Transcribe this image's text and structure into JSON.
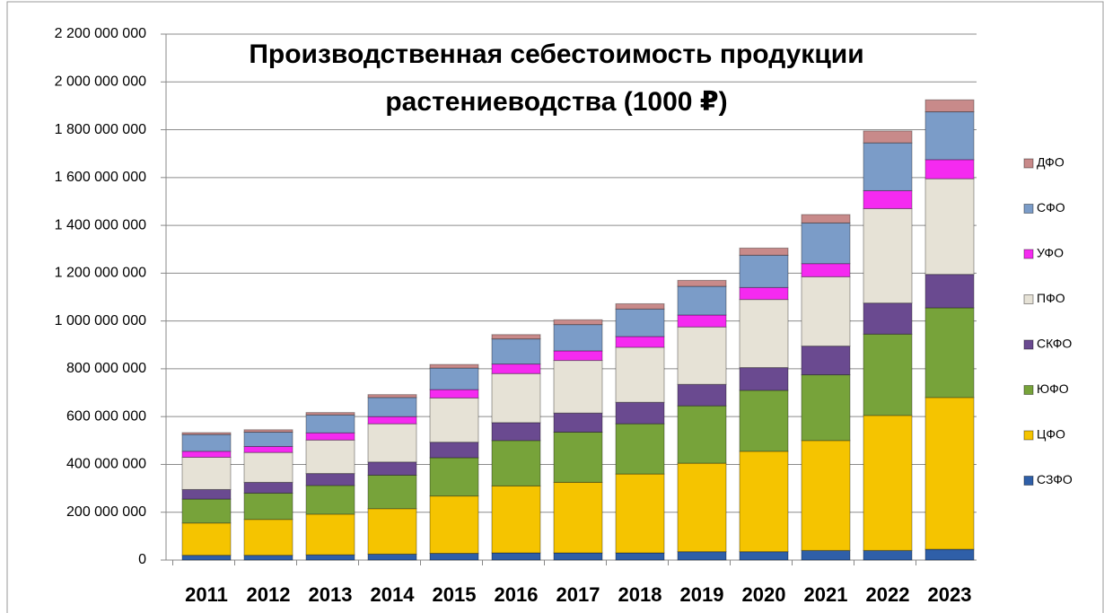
{
  "chart_data": {
    "type": "stacked_bar",
    "title": [
      "Производственная  себестоимость  продукции",
      "растениеводства  (1000 ₽)"
    ],
    "categories": [
      "2011",
      "2012",
      "2013",
      "2014",
      "2015",
      "2016",
      "2017",
      "2018",
      "2019",
      "2020",
      "2021",
      "2022",
      "2023"
    ],
    "series": [
      {
        "name": "СЗФО",
        "color": "#2f5fa8",
        "values": [
          20000000,
          20000000,
          22000000,
          25000000,
          28000000,
          30000000,
          30000000,
          30000000,
          35000000,
          35000000,
          40000000,
          40000000,
          45000000
        ]
      },
      {
        "name": "ЦФО",
        "color": "#f5c400",
        "values": [
          135000000,
          150000000,
          170000000,
          190000000,
          240000000,
          280000000,
          295000000,
          330000000,
          370000000,
          420000000,
          460000000,
          565000000,
          635000000
        ]
      },
      {
        "name": "ЮФО",
        "color": "#77a33a",
        "values": [
          100000000,
          110000000,
          120000000,
          140000000,
          160000000,
          190000000,
          210000000,
          210000000,
          240000000,
          255000000,
          275000000,
          340000000,
          375000000
        ]
      },
      {
        "name": "СКФО",
        "color": "#6a4a90",
        "values": [
          40000000,
          45000000,
          50000000,
          55000000,
          65000000,
          75000000,
          80000000,
          90000000,
          90000000,
          95000000,
          120000000,
          130000000,
          140000000
        ]
      },
      {
        "name": "ПФО",
        "color": "#e6e2d6",
        "values": [
          135000000,
          125000000,
          140000000,
          160000000,
          185000000,
          205000000,
          220000000,
          230000000,
          240000000,
          285000000,
          290000000,
          395000000,
          400000000
        ]
      },
      {
        "name": "УФО",
        "color": "#f52af0",
        "values": [
          25000000,
          25000000,
          30000000,
          30000000,
          35000000,
          40000000,
          40000000,
          45000000,
          50000000,
          50000000,
          55000000,
          75000000,
          80000000
        ]
      },
      {
        "name": "СФО",
        "color": "#7b9cc8",
        "values": [
          70000000,
          60000000,
          75000000,
          80000000,
          90000000,
          105000000,
          110000000,
          115000000,
          120000000,
          135000000,
          170000000,
          200000000,
          200000000
        ]
      },
      {
        "name": "ДФО",
        "color": "#c88a8a",
        "values": [
          8000000,
          10000000,
          10000000,
          12000000,
          15000000,
          18000000,
          20000000,
          22000000,
          25000000,
          30000000,
          35000000,
          50000000,
          50000000
        ]
      }
    ],
    "ylim": [
      0,
      2200000000
    ],
    "yticks": [
      0,
      {
        "value": 200000000,
        "label": "200 000 000"
      },
      {
        "value": 400000000,
        "label": "400 000 000"
      },
      {
        "value": 600000000,
        "label": "600 000 000"
      },
      {
        "value": 800000000,
        "label": "800 000 000"
      },
      {
        "value": 1000000000,
        "label": "1 000 000 000"
      },
      {
        "value": 1200000000,
        "label": "1 200 000 000"
      },
      {
        "value": 1400000000,
        "label": "1 400 000 000"
      },
      {
        "value": 1600000000,
        "label": "1 600 000 000"
      },
      {
        "value": 1800000000,
        "label": "1 800 000 000"
      },
      {
        "value": 2000000000,
        "label": "2 000 000 000"
      },
      {
        "value": 2200000000,
        "label": "2 200 000 000"
      }
    ],
    "grid": true,
    "legend": "right"
  }
}
